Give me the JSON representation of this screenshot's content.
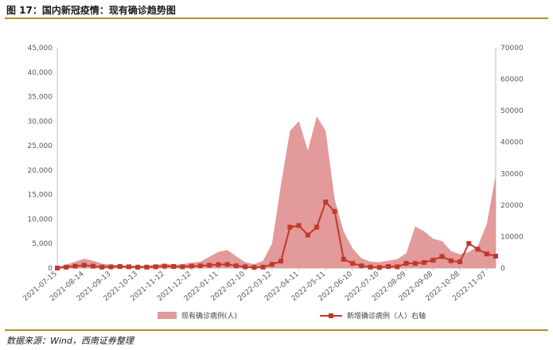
{
  "figure": {
    "title": "图 17：国内新冠疫情：现有确诊趋势图",
    "source": "数据来源：Wind，西南证券整理"
  },
  "chart_data": {
    "type": "area",
    "x": [
      "2021-07-15",
      "2021-07-25",
      "2021-08-04",
      "2021-08-14",
      "2021-08-24",
      "2021-09-03",
      "2021-09-13",
      "2021-09-23",
      "2021-10-03",
      "2021-10-13",
      "2021-10-23",
      "2021-11-02",
      "2021-11-12",
      "2021-11-22",
      "2021-12-02",
      "2021-12-12",
      "2021-12-22",
      "2022-01-01",
      "2022-01-11",
      "2022-01-21",
      "2022-01-31",
      "2022-02-10",
      "2022-02-20",
      "2022-03-02",
      "2022-03-12",
      "2022-03-22",
      "2022-04-01",
      "2022-04-11",
      "2022-04-21",
      "2022-05-01",
      "2022-05-11",
      "2022-05-21",
      "2022-05-31",
      "2022-06-10",
      "2022-06-20",
      "2022-06-30",
      "2022-07-10",
      "2022-07-20",
      "2022-07-30",
      "2022-08-09",
      "2022-08-19",
      "2022-08-29",
      "2022-09-08",
      "2022-09-18",
      "2022-09-28",
      "2022-10-08",
      "2022-10-18",
      "2022-10-28",
      "2022-11-07",
      "2022-11-17"
    ],
    "x_tick_labels": [
      "2021-07-15",
      "2021-08-14",
      "2021-09-13",
      "2021-10-13",
      "2021-11-12",
      "2021-12-12",
      "2022-01-11",
      "2022-02-10",
      "2022-03-12",
      "2022-04-11",
      "2022-05-11",
      "2022-06-10",
      "2022-07-10",
      "2022-08-09",
      "2022-09-08",
      "2022-10-08",
      "2022-11-07"
    ],
    "series": [
      {
        "name": "现有确诊病例(人)",
        "axis": "left",
        "type": "area",
        "values": [
          300,
          700,
          1300,
          1900,
          1500,
          900,
          700,
          600,
          500,
          400,
          500,
          700,
          900,
          700,
          800,
          1100,
          1300,
          2300,
          3300,
          3700,
          2400,
          1200,
          800,
          1500,
          5000,
          17000,
          28000,
          30000,
          24000,
          31000,
          28000,
          14000,
          7500,
          4000,
          2000,
          1300,
          1200,
          1500,
          1800,
          3000,
          8500,
          7500,
          6000,
          5500,
          3500,
          2800,
          3300,
          4500,
          9000,
          19000
        ],
        "color": "#e29a9a"
      },
      {
        "name": "新增确诊病例（人）右轴",
        "axis": "right",
        "type": "line",
        "values": [
          0,
          300,
          600,
          900,
          600,
          300,
          400,
          500,
          400,
          300,
          300,
          400,
          600,
          500,
          400,
          600,
          700,
          900,
          1100,
          1200,
          700,
          400,
          200,
          300,
          1200,
          2200,
          13000,
          13500,
          10500,
          13000,
          21000,
          18000,
          2800,
          1500,
          700,
          300,
          200,
          500,
          400,
          1500,
          1500,
          1800,
          2500,
          3700,
          2300,
          2000,
          7800,
          6000,
          4500,
          3800
        ],
        "color": "#c0392b"
      }
    ],
    "y_left": {
      "ylim": [
        0,
        45000
      ],
      "ticks": [
        "0",
        "5,000",
        "10,000",
        "15,000",
        "20,000",
        "25,000",
        "30,000",
        "35,000",
        "40,000",
        "45,000"
      ]
    },
    "y_right": {
      "ylim": [
        0,
        70000
      ],
      "ticks": [
        "0",
        "10000",
        "20000",
        "30000",
        "40000",
        "50000",
        "60000",
        "70000"
      ]
    },
    "legend": "bottom",
    "grid": false
  }
}
